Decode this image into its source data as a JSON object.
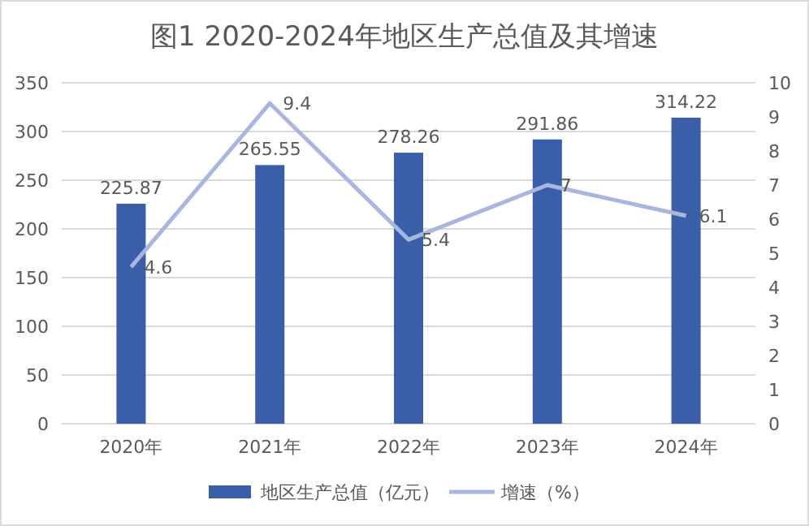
{
  "chart_data": {
    "type": "bar",
    "title": "图1 2020-2024年地区生产总值及其增速",
    "categories": [
      "2020年",
      "2021年",
      "2022年",
      "2023年",
      "2024年"
    ],
    "series": [
      {
        "name": "地区生产总值（亿元）",
        "color": "#3a5ea8",
        "values": [
          225.87,
          265.55,
          278.26,
          291.86,
          314.22
        ]
      },
      {
        "name": "增速（%）",
        "type": "line",
        "axis": "y2",
        "color": "#a9b6e0",
        "values": [
          4.6,
          9.4,
          5.4,
          7,
          6.1
        ]
      }
    ],
    "ylim": [
      0,
      350
    ],
    "yticks": [
      0,
      50,
      100,
      150,
      200,
      250,
      300,
      350
    ],
    "y2lim": [
      0,
      10
    ],
    "y2ticks": [
      0,
      1,
      2,
      3,
      4,
      5,
      6,
      7,
      8,
      9,
      10
    ],
    "grid": "y",
    "legend": "bottom",
    "data_labels": true,
    "marker": "none"
  }
}
